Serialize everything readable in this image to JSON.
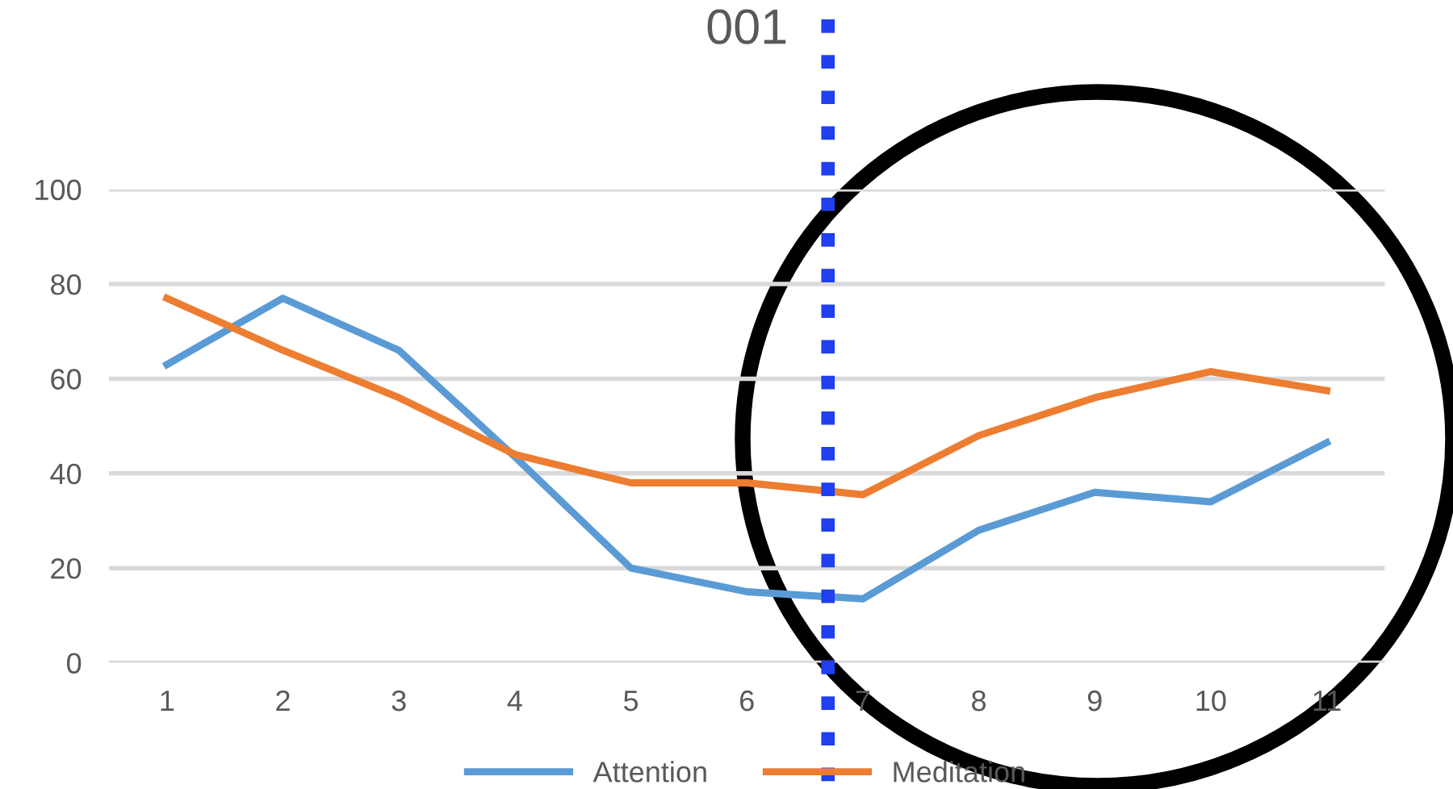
{
  "chart_data": {
    "type": "line",
    "title": "001",
    "x": [
      1,
      2,
      3,
      4,
      5,
      6,
      7,
      8,
      9,
      10,
      11
    ],
    "series": [
      {
        "name": "Attention",
        "color": "#5b9bd5",
        "values": [
          63,
          77,
          66,
          43.5,
          20,
          15,
          13.5,
          28,
          36,
          34,
          46.5
        ]
      },
      {
        "name": "Meditation",
        "color": "#ed7d31",
        "values": [
          77,
          66,
          56,
          44,
          38,
          38,
          35.5,
          48,
          56,
          61.5,
          57.5
        ]
      }
    ],
    "xlim": [
      0.5,
      11.5
    ],
    "xticks": [
      1,
      2,
      3,
      4,
      5,
      6,
      7,
      8,
      9,
      10,
      11
    ],
    "ylim": [
      0,
      100
    ],
    "yticks": [
      0,
      20,
      40,
      60,
      80,
      100
    ],
    "ref_lines": [
      {
        "axis": "x",
        "value": 6.7,
        "color": "#1f3ff0",
        "line_style": "dotted"
      }
    ],
    "grid": "y",
    "legend": "bottom",
    "marker": "none",
    "line_style": "solid"
  }
}
